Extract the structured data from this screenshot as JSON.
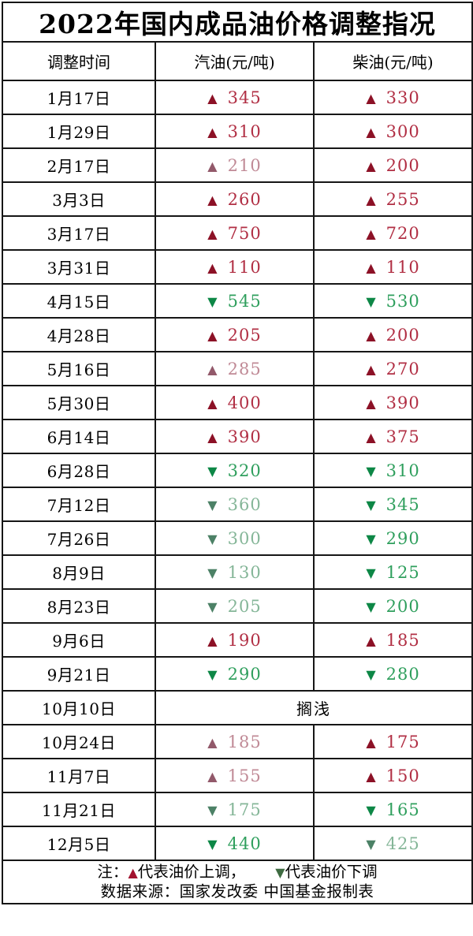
{
  "title": "2022年国内成品油价格调整指况",
  "columns": [
    "调整时间",
    "汽油(元/吨)",
    "柴油(元/吨)"
  ],
  "symbols": {
    "up": "▲",
    "down": "▼"
  },
  "rows": [
    {
      "date": "1月17日",
      "gasoline": {
        "dir": "up",
        "value": "345",
        "tone": "bright"
      },
      "diesel": {
        "dir": "up",
        "value": "330",
        "tone": "bright"
      }
    },
    {
      "date": "1月29日",
      "gasoline": {
        "dir": "up",
        "value": "310",
        "tone": "bright"
      },
      "diesel": {
        "dir": "up",
        "value": "300",
        "tone": "bright"
      }
    },
    {
      "date": "2月17日",
      "gasoline": {
        "dir": "up",
        "value": "210",
        "tone": "muted"
      },
      "diesel": {
        "dir": "up",
        "value": "200",
        "tone": "bright"
      }
    },
    {
      "date": "3月3日",
      "gasoline": {
        "dir": "up",
        "value": "260",
        "tone": "bright"
      },
      "diesel": {
        "dir": "up",
        "value": "255",
        "tone": "bright"
      }
    },
    {
      "date": "3月17日",
      "gasoline": {
        "dir": "up",
        "value": "750",
        "tone": "bright"
      },
      "diesel": {
        "dir": "up",
        "value": "720",
        "tone": "bright"
      }
    },
    {
      "date": "3月31日",
      "gasoline": {
        "dir": "up",
        "value": "110",
        "tone": "bright"
      },
      "diesel": {
        "dir": "up",
        "value": "110",
        "tone": "bright"
      }
    },
    {
      "date": "4月15日",
      "gasoline": {
        "dir": "down",
        "value": "545",
        "tone": "bright"
      },
      "diesel": {
        "dir": "down",
        "value": "530",
        "tone": "bright"
      }
    },
    {
      "date": "4月28日",
      "gasoline": {
        "dir": "up",
        "value": "205",
        "tone": "bright"
      },
      "diesel": {
        "dir": "up",
        "value": "200",
        "tone": "bright"
      }
    },
    {
      "date": "5月16日",
      "gasoline": {
        "dir": "up",
        "value": "285",
        "tone": "muted"
      },
      "diesel": {
        "dir": "up",
        "value": "270",
        "tone": "bright"
      }
    },
    {
      "date": "5月30日",
      "gasoline": {
        "dir": "up",
        "value": "400",
        "tone": "bright"
      },
      "diesel": {
        "dir": "up",
        "value": "390",
        "tone": "bright"
      }
    },
    {
      "date": "6月14日",
      "gasoline": {
        "dir": "up",
        "value": "390",
        "tone": "bright"
      },
      "diesel": {
        "dir": "up",
        "value": "375",
        "tone": "bright"
      }
    },
    {
      "date": "6月28日",
      "gasoline": {
        "dir": "down",
        "value": "320",
        "tone": "bright"
      },
      "diesel": {
        "dir": "down",
        "value": "310",
        "tone": "bright"
      }
    },
    {
      "date": "7月12日",
      "gasoline": {
        "dir": "down",
        "value": "360",
        "tone": "muted"
      },
      "diesel": {
        "dir": "down",
        "value": "345",
        "tone": "bright"
      }
    },
    {
      "date": "7月26日",
      "gasoline": {
        "dir": "down",
        "value": "300",
        "tone": "muted"
      },
      "diesel": {
        "dir": "down",
        "value": "290",
        "tone": "bright"
      }
    },
    {
      "date": "8月9日",
      "gasoline": {
        "dir": "down",
        "value": "130",
        "tone": "muted"
      },
      "diesel": {
        "dir": "down",
        "value": "125",
        "tone": "bright"
      }
    },
    {
      "date": "8月23日",
      "gasoline": {
        "dir": "down",
        "value": "205",
        "tone": "muted"
      },
      "diesel": {
        "dir": "down",
        "value": "200",
        "tone": "bright"
      }
    },
    {
      "date": "9月6日",
      "gasoline": {
        "dir": "up",
        "value": "190",
        "tone": "bright"
      },
      "diesel": {
        "dir": "up",
        "value": "185",
        "tone": "bright"
      }
    },
    {
      "date": "9月21日",
      "gasoline": {
        "dir": "down",
        "value": "290",
        "tone": "bright"
      },
      "diesel": {
        "dir": "down",
        "value": "280",
        "tone": "bright"
      }
    },
    {
      "date": "10月10日",
      "merged": "搁浅"
    },
    {
      "date": "10月24日",
      "gasoline": {
        "dir": "up",
        "value": "185",
        "tone": "muted"
      },
      "diesel": {
        "dir": "up",
        "value": "175",
        "tone": "bright"
      }
    },
    {
      "date": "11月7日",
      "gasoline": {
        "dir": "up",
        "value": "155",
        "tone": "muted"
      },
      "diesel": {
        "dir": "up",
        "value": "150",
        "tone": "bright"
      }
    },
    {
      "date": "11月21日",
      "gasoline": {
        "dir": "down",
        "value": "175",
        "tone": "muted"
      },
      "diesel": {
        "dir": "down",
        "value": "165",
        "tone": "bright"
      }
    },
    {
      "date": "12月5日",
      "gasoline": {
        "dir": "down",
        "value": "440",
        "tone": "bright"
      },
      "diesel": {
        "dir": "down",
        "value": "425",
        "tone": "muted"
      }
    }
  ],
  "legend": {
    "prefix": "注：",
    "up_symbol": "▲",
    "up_text": "代表油价上调，",
    "down_symbol": "▼",
    "down_text": "代表油价下调"
  },
  "source": "数据来源：国家发改委  中国基金报制表",
  "colors": {
    "up_bright_arrow": "#8c1126",
    "up_bright_text": "#b12f44",
    "up_muted_arrow": "#92596a",
    "up_muted_text": "#c08a96",
    "down_bright_arrow": "#0d8746",
    "down_bright_text": "#2f9f5d",
    "down_muted_arrow": "#4c8166",
    "down_muted_text": "#85b698",
    "legend_up": "#a2122f",
    "legend_down": "#3e6b41",
    "border": "#161616",
    "text": "#000000"
  }
}
